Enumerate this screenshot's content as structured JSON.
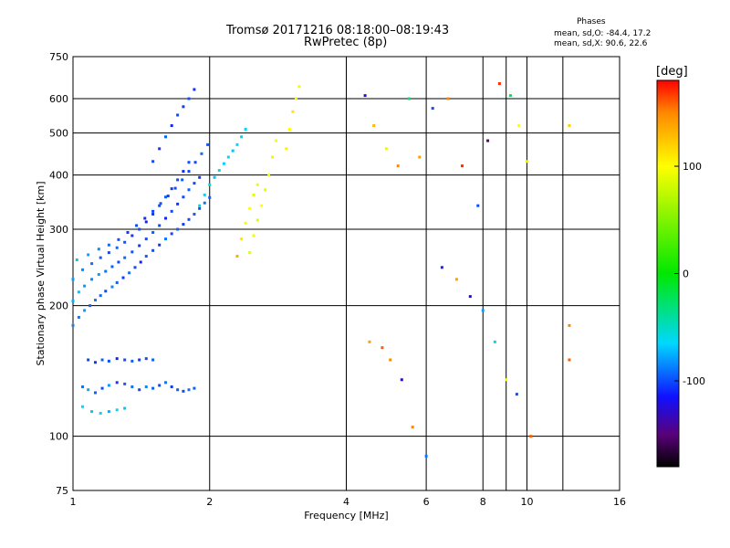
{
  "header": {
    "title_line1": "Tromsø 20171216 08:18:00–08:19:43",
    "title_line2": "RwPretec (8p)",
    "phase_title": "Phases",
    "phase_line1": "mean, sd,O: -84.4, 17.2",
    "phase_line2": "mean, sd,X:  90.6, 22.6"
  },
  "chart_data": {
    "type": "scatter",
    "xlabel": "Frequency [MHz]",
    "ylabel": "Stationary phase Virtual Height [km]",
    "x_scale": "log",
    "y_scale": "log",
    "xlim": [
      1,
      16
    ],
    "ylim": [
      75,
      750
    ],
    "x_ticks": [
      1,
      2,
      4,
      6,
      8,
      10,
      16
    ],
    "x_tick_labels": [
      "1",
      "2",
      "4",
      "6",
      "8",
      "10",
      "16"
    ],
    "y_ticks": [
      75,
      100,
      200,
      300,
      400,
      500,
      600,
      750
    ],
    "y_tick_labels": [
      "75",
      "100",
      "200",
      "300",
      "400",
      "500",
      "600",
      "750"
    ],
    "extra_vlines": [
      9,
      12
    ],
    "grid": true,
    "colorbar": {
      "label": "[deg]",
      "range": [
        -180,
        180
      ],
      "ticks": [
        100,
        0,
        -100
      ],
      "tick_labels": [
        "100",
        "0",
        "-100"
      ],
      "stops": [
        {
          "v": -180,
          "color": "#000000"
        },
        {
          "v": -150,
          "color": "#5a007a"
        },
        {
          "v": -115,
          "color": "#1010ff"
        },
        {
          "v": -65,
          "color": "#00d8ff"
        },
        {
          "v": 0,
          "color": "#00e800"
        },
        {
          "v": 100,
          "color": "#ffff00"
        },
        {
          "v": 150,
          "color": "#ff8800"
        },
        {
          "v": 180,
          "color": "#ff0000"
        }
      ]
    },
    "series": [
      {
        "x": [
          1.0,
          1.03,
          1.06,
          1.09,
          1.12,
          1.15,
          1.18,
          1.22,
          1.25,
          1.29,
          1.33,
          1.37,
          1.41,
          1.45,
          1.5,
          1.55,
          1.6,
          1.65,
          1.7,
          1.75,
          1.8,
          1.85,
          1.9,
          1.95,
          2.0
        ],
        "y": [
          180,
          188,
          195,
          200,
          206,
          211,
          216,
          221,
          226,
          232,
          238,
          245,
          252,
          260,
          268,
          276,
          285,
          293,
          300,
          308,
          316,
          325,
          335,
          345,
          355
        ],
        "phase": [
          -85,
          -90,
          -80,
          -95,
          -88,
          -92,
          -100,
          -85,
          -95,
          -105,
          -90,
          -100,
          -110,
          -95,
          -100,
          -105,
          -90,
          -100,
          -95,
          -105,
          -100,
          -95,
          -100,
          -90,
          -95
        ]
      },
      {
        "x": [
          1.0,
          1.03,
          1.06,
          1.1,
          1.14,
          1.18,
          1.22,
          1.26,
          1.3,
          1.35,
          1.4,
          1.45,
          1.5,
          1.55,
          1.6,
          1.65,
          1.7,
          1.75,
          1.8,
          1.85,
          1.9
        ],
        "y": [
          205,
          215,
          222,
          230,
          236,
          240,
          246,
          252,
          258,
          266,
          275,
          285,
          295,
          306,
          318,
          330,
          343,
          356,
          370,
          383,
          395
        ],
        "phase": [
          -75,
          -70,
          -80,
          -85,
          -78,
          -90,
          -95,
          -100,
          -92,
          -98,
          -105,
          -100,
          -95,
          -100,
          -110,
          -100,
          -105,
          -100,
          -95,
          -100,
          -105
        ]
      },
      {
        "x": [
          1.0,
          1.05,
          1.1,
          1.15,
          1.2,
          1.25,
          1.3,
          1.35,
          1.4,
          1.45,
          1.5,
          1.55,
          1.6,
          1.65,
          1.7,
          1.75,
          1.8
        ],
        "y": [
          230,
          242,
          250,
          258,
          265,
          272,
          280,
          290,
          300,
          312,
          325,
          340,
          356,
          372,
          390,
          408,
          428
        ],
        "phase": [
          -80,
          -85,
          -90,
          -95,
          -100,
          -92,
          -98,
          -105,
          -100,
          -110,
          -105,
          -100,
          -95,
          -105,
          -100,
          -110,
          -100
        ]
      },
      {
        "x": [
          1.02,
          1.08,
          1.14,
          1.2,
          1.26,
          1.32,
          1.38,
          1.44,
          1.5,
          1.56,
          1.62,
          1.68,
          1.74,
          1.8,
          1.86,
          1.92,
          1.98
        ],
        "y": [
          255,
          262,
          270,
          276,
          284,
          295,
          306,
          318,
          330,
          344,
          358,
          373,
          390,
          408,
          428,
          448,
          470
        ],
        "phase": [
          -70,
          -78,
          -85,
          -92,
          -98,
          -105,
          -100,
          -108,
          -102,
          -98,
          -104,
          -100,
          -96,
          -102,
          -100,
          -92,
          -95
        ]
      },
      {
        "x": [
          1.5,
          1.55,
          1.6,
          1.65,
          1.7,
          1.75,
          1.8,
          1.85
        ],
        "y": [
          430,
          460,
          490,
          520,
          550,
          575,
          600,
          630
        ],
        "phase": [
          -100,
          -105,
          -95,
          -110,
          -100,
          -104,
          -98,
          -106
        ]
      },
      {
        "x": [
          1.9,
          1.95,
          2.0,
          2.05,
          2.1,
          2.15,
          2.2,
          2.25,
          2.3,
          2.35,
          2.4
        ],
        "y": [
          340,
          360,
          380,
          395,
          410,
          425,
          440,
          455,
          470,
          490,
          510
        ],
        "phase": [
          -60,
          -65,
          -55,
          -70,
          -60,
          -68,
          -62,
          -70,
          -65,
          -60,
          -66
        ]
      },
      {
        "x": [
          2.3,
          2.35,
          2.4,
          2.45,
          2.5,
          2.55
        ],
        "y": [
          260,
          285,
          310,
          335,
          360,
          380
        ],
        "phase": [
          135,
          110,
          95,
          100,
          90,
          105
        ]
      },
      {
        "x": [
          2.45,
          2.5,
          2.55,
          2.6,
          2.65,
          2.7,
          2.75,
          2.8
        ],
        "y": [
          265,
          290,
          315,
          340,
          370,
          400,
          440,
          480
        ],
        "phase": [
          90,
          95,
          88,
          100,
          92,
          95,
          105,
          98
        ]
      },
      {
        "x": [
          2.95,
          3.0,
          3.05,
          3.1,
          3.15
        ],
        "y": [
          460,
          510,
          560,
          600,
          640
        ],
        "phase": [
          105,
          98,
          110,
          102,
          95
        ]
      },
      {
        "x": [
          1.05,
          1.08,
          1.12,
          1.16,
          1.2,
          1.25,
          1.3,
          1.35,
          1.4,
          1.45,
          1.5,
          1.55,
          1.6,
          1.65,
          1.7,
          1.75,
          1.8,
          1.85
        ],
        "y": [
          130,
          128,
          126,
          129,
          131,
          133,
          132,
          130,
          128,
          130,
          129,
          131,
          133,
          130,
          128,
          127,
          128,
          129
        ],
        "phase": [
          -90,
          -75,
          -95,
          -100,
          -80,
          -105,
          -95,
          -90,
          -100,
          -85,
          -95,
          -100,
          -90,
          -105,
          -95,
          -100,
          -90,
          -95
        ]
      },
      {
        "x": [
          1.08,
          1.12,
          1.16,
          1.2,
          1.25,
          1.3,
          1.35,
          1.4,
          1.45,
          1.5
        ],
        "y": [
          150,
          148,
          150,
          149,
          151,
          150,
          149,
          150,
          151,
          150
        ],
        "phase": [
          -100,
          -105,
          -95,
          -100,
          -110,
          -100,
          -95,
          -105,
          -100,
          -95
        ]
      },
      {
        "x": [
          1.05,
          1.1,
          1.15,
          1.2,
          1.25,
          1.3
        ],
        "y": [
          117,
          114,
          113,
          114,
          115,
          116
        ],
        "phase": [
          -65,
          -70,
          -60,
          -75,
          -65,
          -70
        ]
      },
      {
        "x": [
          4.4,
          4.6,
          4.9,
          5.2,
          5.5,
          5.8,
          6.2,
          6.7,
          7.2,
          7.8,
          8.2,
          8.7,
          9.2,
          9.6,
          10.0,
          12.4,
          12.4,
          12.4
        ],
        "y": [
          610,
          520,
          460,
          420,
          600,
          440,
          570,
          600,
          420,
          340,
          480,
          650,
          610,
          520,
          430,
          520,
          180,
          150
        ],
        "phase": [
          -120,
          130,
          90,
          150,
          -30,
          140,
          -100,
          150,
          170,
          -100,
          -150,
          170,
          -20,
          100,
          90,
          120,
          150,
          160
        ]
      },
      {
        "x": [
          4.5,
          4.8,
          5.0,
          5.3,
          5.6,
          6.0,
          6.5,
          7.0,
          7.5,
          8.0,
          8.5,
          9.0,
          9.5,
          10.2
        ],
        "y": [
          165,
          160,
          150,
          135,
          105,
          90,
          245,
          230,
          210,
          195,
          165,
          135,
          125,
          100
        ],
        "phase": [
          140,
          160,
          150,
          -120,
          150,
          -90,
          -110,
          140,
          -130,
          -80,
          -60,
          100,
          -100,
          160
        ]
      }
    ]
  }
}
